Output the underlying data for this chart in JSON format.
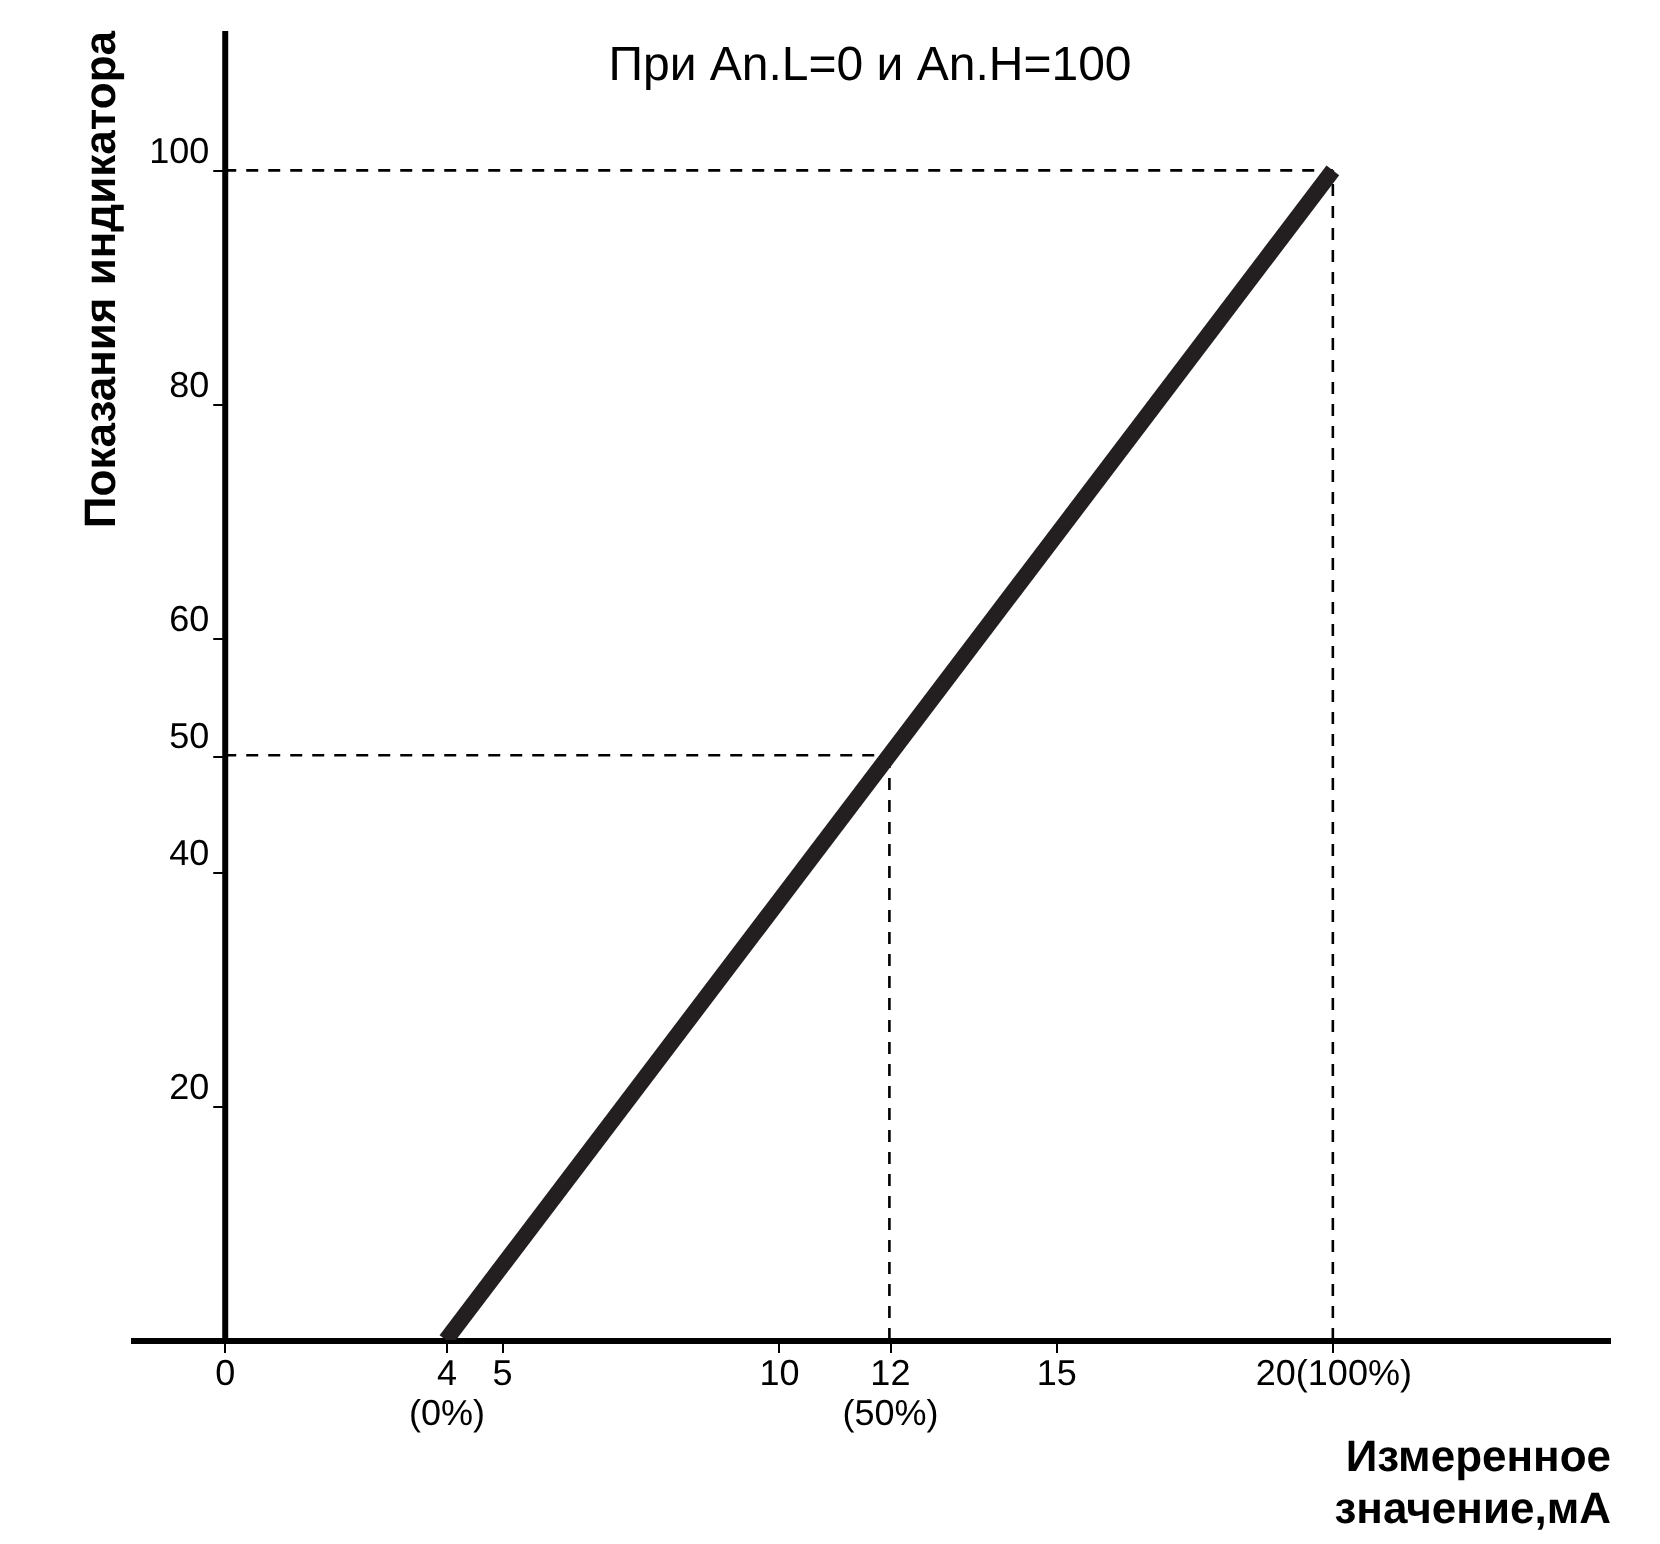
{
  "chart_data": {
    "type": "line",
    "title": "При An.L=0 и An.H=100",
    "xlabel": "Измеренное значение,мА",
    "ylabel": "Показания индикатора",
    "series": [
      {
        "color": "#231f20",
        "x": [
          4,
          20
        ],
        "values": [
          0,
          100
        ]
      }
    ],
    "xlim": [
      -1.7,
      25
    ],
    "ylim": [
      0,
      112
    ],
    "xticks": [
      0,
      {
        "value": 4,
        "label": "4 (0%)"
      },
      5,
      10,
      {
        "value": 12,
        "label": "12 (50%)"
      },
      15,
      {
        "value": 20,
        "label": "20(100%)"
      }
    ],
    "yticks": [
      20,
      40,
      50,
      60,
      80,
      100
    ],
    "ref_lines": [
      {
        "axis": "y",
        "value": 100,
        "line_style": "dashed",
        "color": "#000000"
      },
      {
        "axis": "x",
        "value": 20,
        "line_style": "dashed",
        "color": "#000000"
      },
      {
        "axis": "y",
        "value": 50,
        "line_style": "dashed",
        "color": "#000000"
      },
      {
        "axis": "x",
        "value": 12,
        "line_style": "dashed",
        "color": "#000000"
      }
    ],
    "grid": false,
    "line_style": "solid"
  }
}
